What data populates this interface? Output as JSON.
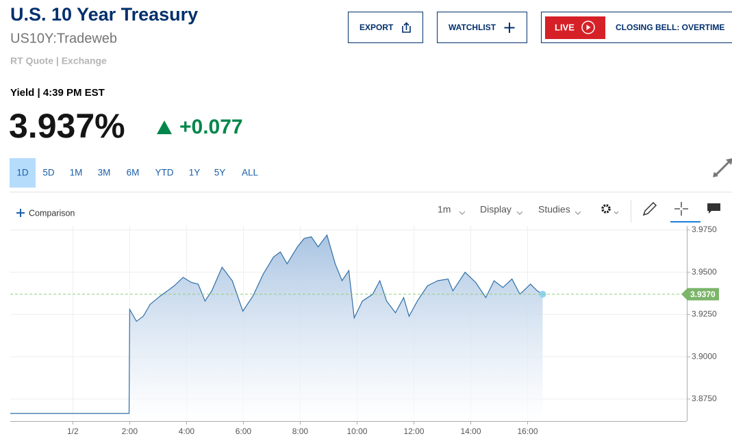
{
  "header": {
    "title": "U.S. 10 Year Treasury",
    "symbol": "US10Y:Tradeweb",
    "source": "RT Quote | Exchange"
  },
  "buttons": {
    "export": "EXPORT",
    "watchlist": "WATCHLIST",
    "live": "LIVE",
    "show": "CLOSING BELL: OVERTIME"
  },
  "quote": {
    "label": "Yield | 4:39 PM EST",
    "price": "3.937%",
    "change": "+0.077"
  },
  "ranges": [
    "1D",
    "5D",
    "1M",
    "3M",
    "6M",
    "YTD",
    "1Y",
    "5Y",
    "ALL"
  ],
  "toolbar": {
    "comparison": "Comparison",
    "interval": "1m",
    "display": "Display",
    "studies": "Studies"
  },
  "chart_data": {
    "type": "line",
    "color": "#2f6ea6",
    "x": [
      -2.2,
      1.98,
      2.0,
      2.24,
      2.48,
      2.72,
      3.08,
      3.33,
      3.57,
      3.88,
      4.17,
      4.41,
      4.65,
      4.89,
      5.25,
      5.61,
      5.98,
      6.34,
      6.7,
      7.06,
      7.3,
      7.54,
      7.9,
      8.14,
      8.39,
      8.63,
      8.94,
      9.23,
      9.47,
      9.71,
      9.9,
      10.19,
      10.55,
      10.8,
      11.04,
      11.35,
      11.64,
      11.83,
      12.12,
      12.48,
      12.84,
      13.2,
      13.37,
      13.8,
      14.17,
      14.53,
      14.82,
      15.13,
      15.45,
      15.73,
      16.1,
      16.34,
      16.53
    ],
    "values": [
      3.8665,
      3.8665,
      3.928,
      3.921,
      3.924,
      3.931,
      3.936,
      3.939,
      3.942,
      3.947,
      3.944,
      3.943,
      3.933,
      3.939,
      3.953,
      3.945,
      3.927,
      3.936,
      3.949,
      3.959,
      3.962,
      3.955,
      3.965,
      3.97,
      3.971,
      3.965,
      3.972,
      3.955,
      3.945,
      3.951,
      3.923,
      3.933,
      3.937,
      3.945,
      3.933,
      3.926,
      3.935,
      3.924,
      3.933,
      3.942,
      3.945,
      3.946,
      3.939,
      3.95,
      3.944,
      3.935,
      3.945,
      3.941,
      3.946,
      3.937,
      3.943,
      3.939,
      3.937
    ],
    "xlim": [
      -2.2,
      21.6
    ],
    "xticks": [
      {
        "value": 0,
        "label": "1/2"
      },
      {
        "value": 2,
        "label": "2:00"
      },
      {
        "value": 4,
        "label": "4:00"
      },
      {
        "value": 6,
        "label": "6:00"
      },
      {
        "value": 8,
        "label": "8:00"
      },
      {
        "value": 10,
        "label": "10:00"
      },
      {
        "value": 12,
        "label": "12:00"
      },
      {
        "value": 14,
        "label": "14:00"
      },
      {
        "value": 16,
        "label": "16:00"
      }
    ],
    "ylim": [
      3.862,
      3.9774
    ],
    "yticks": [
      {
        "value": 3.975,
        "label": "3.9750"
      },
      {
        "value": 3.95,
        "label": "3.9500"
      },
      {
        "value": 3.925,
        "label": "3.9250"
      },
      {
        "value": 3.9,
        "label": "3.9000"
      },
      {
        "value": 3.875,
        "label": "3.8750"
      }
    ],
    "reference_line": {
      "value": 3.937,
      "label": "3.9370"
    },
    "grid": true
  }
}
